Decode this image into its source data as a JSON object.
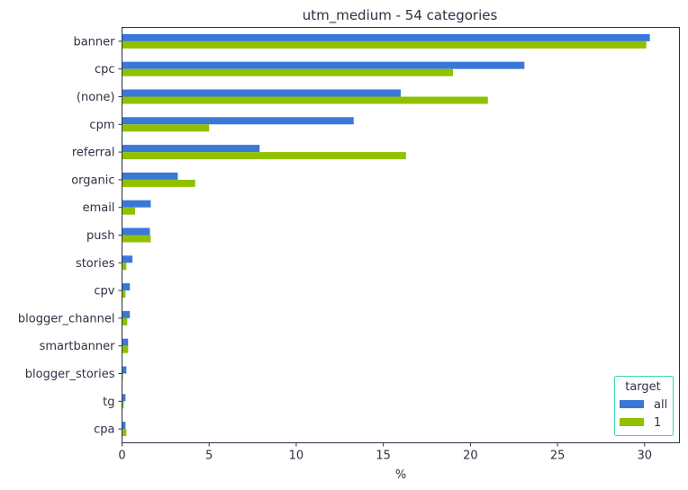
{
  "chart_data": {
    "type": "bar",
    "orientation": "horizontal",
    "title": "utm_medium - 54 categories",
    "xlabel": "%",
    "ylabel": "",
    "xlim": [
      0,
      32
    ],
    "xticks": [
      0,
      5,
      10,
      15,
      20,
      25,
      30
    ],
    "grid": false,
    "categories": [
      "banner",
      "cpc",
      "(none)",
      "cpm",
      "referral",
      "organic",
      "email",
      "push",
      "stories",
      "cpv",
      "blogger_channel",
      "smartbanner",
      "blogger_stories",
      "tg",
      "cpa"
    ],
    "series": [
      {
        "name": "all",
        "color": "#3a78d8",
        "values": [
          30.3,
          23.1,
          16.0,
          13.3,
          7.9,
          3.2,
          1.65,
          1.6,
          0.6,
          0.45,
          0.45,
          0.35,
          0.25,
          0.2,
          0.2
        ]
      },
      {
        "name": "1",
        "color": "#8fc100",
        "values": [
          30.1,
          19.0,
          21.0,
          5.0,
          16.3,
          4.2,
          0.75,
          1.65,
          0.25,
          0.2,
          0.3,
          0.35,
          0.05,
          0.1,
          0.25
        ]
      }
    ],
    "legend": {
      "title": "target",
      "placement": "bottom-right",
      "border_color": "#3ad6b0"
    }
  }
}
